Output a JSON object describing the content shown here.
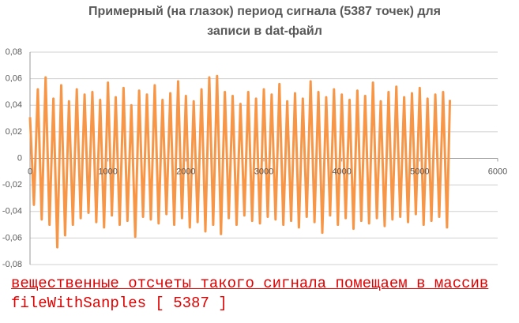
{
  "chart_data": {
    "type": "line",
    "title": "Примерный (на глазок) период сигнала (5387 точек) для записи в dat-файл",
    "annotations": [
      "вещественные отсчеты такого сигнала помещаем в массив",
      "fileWithSanples [ 5387 ]"
    ],
    "color": "#f79646",
    "grid": true,
    "xlim": [
      0,
      6000
    ],
    "xticks": [
      0,
      1000,
      2000,
      3000,
      4000,
      5000,
      6000
    ],
    "ylim": [
      -0.08,
      0.08
    ],
    "yticks": [
      {
        "value": -0.08,
        "label": "-0,08"
      },
      {
        "value": -0.06,
        "label": "-0,06"
      },
      {
        "value": -0.04,
        "label": "-0,04"
      },
      {
        "value": -0.02,
        "label": "-0,02"
      },
      0,
      {
        "value": 0.02,
        "label": "0,02"
      },
      {
        "value": 0.04,
        "label": "0,04"
      },
      {
        "value": 0.06,
        "label": "0,06"
      },
      {
        "value": 0.08,
        "label": "0,08"
      }
    ],
    "x": [
      0,
      50,
      100,
      150,
      200,
      250,
      300,
      350,
      400,
      450,
      500,
      550,
      600,
      650,
      700,
      750,
      800,
      850,
      900,
      950,
      1000,
      1050,
      1100,
      1150,
      1200,
      1250,
      1300,
      1350,
      1400,
      1450,
      1500,
      1550,
      1600,
      1650,
      1700,
      1750,
      1800,
      1850,
      1900,
      1950,
      2000,
      2050,
      2100,
      2150,
      2200,
      2250,
      2300,
      2350,
      2400,
      2450,
      2500,
      2550,
      2600,
      2650,
      2700,
      2750,
      2800,
      2850,
      2900,
      2950,
      3000,
      3050,
      3100,
      3150,
      3200,
      3250,
      3300,
      3350,
      3400,
      3450,
      3500,
      3550,
      3600,
      3650,
      3700,
      3750,
      3800,
      3850,
      3900,
      3950,
      4000,
      4050,
      4100,
      4150,
      4200,
      4250,
      4300,
      4350,
      4400,
      4450,
      4500,
      4550,
      4600,
      4650,
      4700,
      4750,
      4800,
      4850,
      4900,
      4950,
      5000,
      5050,
      5100,
      5150,
      5200,
      5250,
      5300,
      5350,
      5387
    ],
    "values": [
      0.031,
      -0.035,
      0.052,
      -0.046,
      0.061,
      -0.05,
      0.045,
      -0.067,
      0.055,
      -0.058,
      0.043,
      -0.05,
      0.052,
      -0.045,
      0.048,
      -0.041,
      0.05,
      -0.048,
      0.044,
      -0.052,
      0.057,
      -0.043,
      0.046,
      -0.05,
      0.053,
      -0.047,
      0.04,
      -0.059,
      0.051,
      -0.044,
      0.048,
      -0.046,
      0.055,
      -0.049,
      0.044,
      -0.042,
      0.049,
      -0.05,
      0.058,
      -0.045,
      0.047,
      -0.052,
      0.043,
      -0.048,
      0.052,
      -0.055,
      0.061,
      -0.05,
      0.062,
      -0.057,
      0.05,
      -0.045,
      0.047,
      -0.05,
      0.041,
      -0.043,
      0.05,
      -0.047,
      0.045,
      -0.049,
      0.052,
      -0.044,
      0.048,
      -0.046,
      0.056,
      -0.05,
      0.043,
      -0.047,
      0.049,
      -0.052,
      0.045,
      -0.044,
      0.058,
      -0.048,
      0.05,
      -0.056,
      0.046,
      -0.043,
      0.052,
      -0.05,
      0.048,
      -0.045,
      0.044,
      -0.053,
      0.051,
      -0.047,
      0.047,
      -0.049,
      0.057,
      -0.045,
      0.043,
      -0.051,
      0.05,
      -0.046,
      0.054,
      -0.044,
      0.046,
      -0.048,
      0.049,
      -0.042,
      0.053,
      -0.05,
      0.045,
      -0.047,
      0.048,
      -0.044,
      0.05,
      -0.052,
      0.044
    ]
  }
}
